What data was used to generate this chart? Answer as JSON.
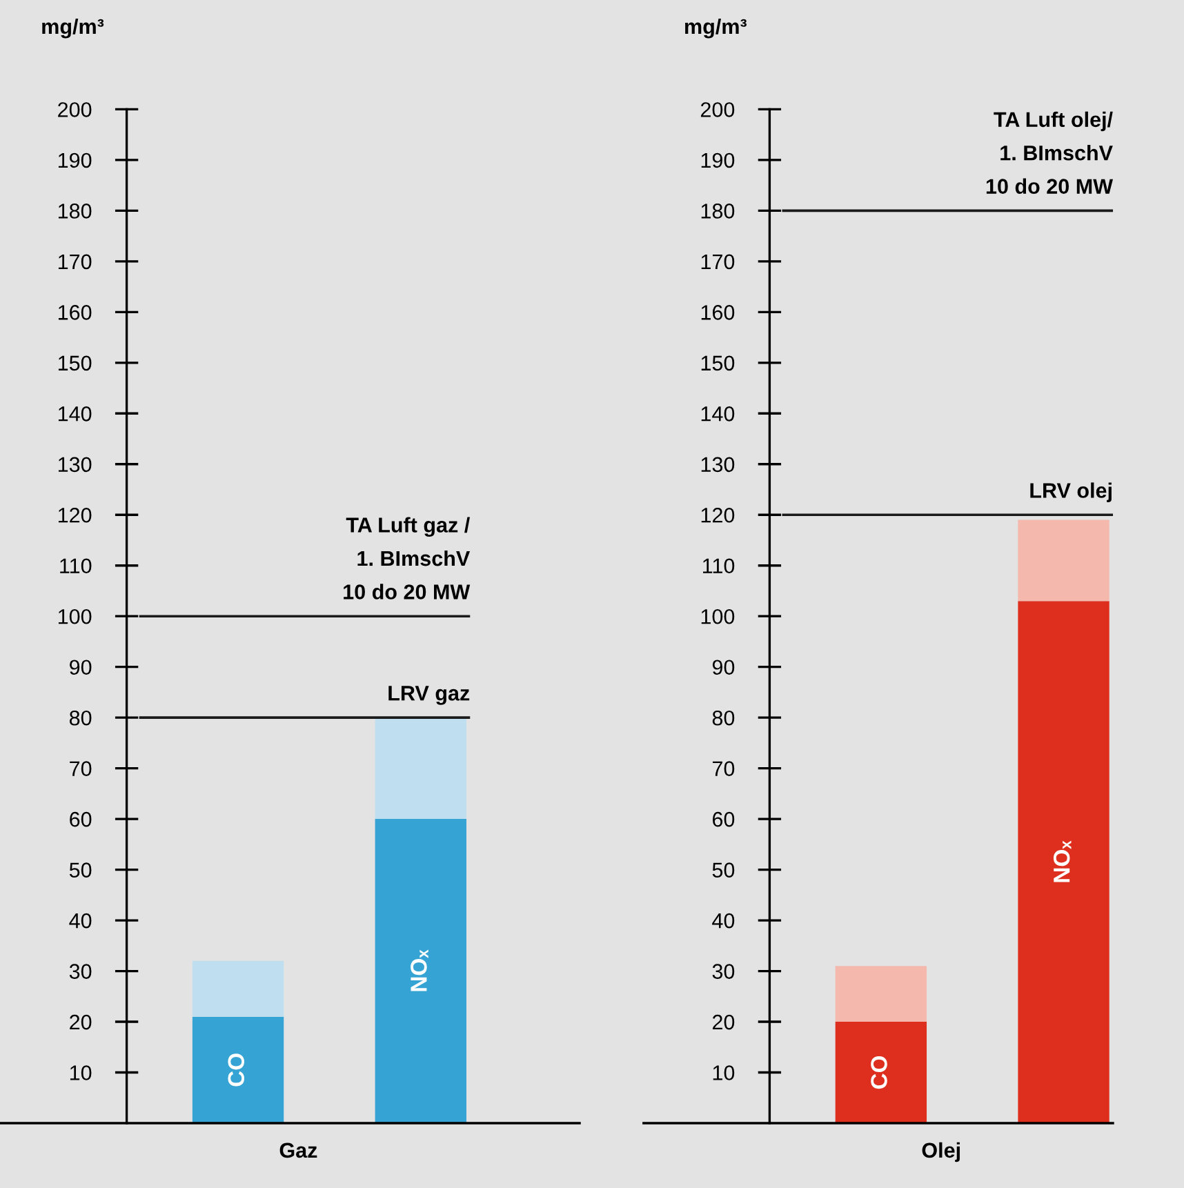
{
  "chart_data": [
    {
      "type": "bar",
      "stacked": true,
      "xlabel": "Gaz",
      "ylabel": "mg/m³",
      "categories": [
        "CO",
        "NOₓ"
      ],
      "series": [
        {
          "color": "#35a3d3",
          "values": [
            21,
            60
          ]
        },
        {
          "color": "#bfdff0",
          "values": [
            11,
            20
          ]
        }
      ],
      "ylim": [
        0,
        200
      ],
      "yticks": [
        10,
        20,
        30,
        40,
        50,
        60,
        70,
        80,
        90,
        100,
        110,
        120,
        130,
        140,
        150,
        160,
        170,
        180,
        190,
        200
      ],
      "ref_lines": [
        {
          "axis": "y",
          "value": 100,
          "label": "TA Luft gaz /\n1. BImschV\n10 do 20 MW",
          "color": "#1a1a1a"
        },
        {
          "axis": "y",
          "value": 80,
          "label": "LRV gaz",
          "color": "#1a1a1a"
        }
      ],
      "grid": false,
      "tick_labels": "y"
    },
    {
      "type": "bar",
      "stacked": true,
      "xlabel": "Olej",
      "ylabel": "mg/m³",
      "categories": [
        "CO",
        "NOₓ"
      ],
      "series": [
        {
          "color": "#dd2e1e",
          "values": [
            20,
            103
          ]
        },
        {
          "color": "#f4b8ad",
          "values": [
            11,
            16
          ]
        }
      ],
      "ylim": [
        0,
        200
      ],
      "yticks": [
        10,
        20,
        30,
        40,
        50,
        60,
        70,
        80,
        90,
        100,
        110,
        120,
        130,
        140,
        150,
        160,
        170,
        180,
        190,
        200
      ],
      "ref_lines": [
        {
          "axis": "y",
          "value": 180,
          "label": "TA Luft olej/\n1. BImschV\n10 do 20 MW",
          "color": "#1a1a1a"
        },
        {
          "axis": "y",
          "value": 120,
          "label": "LRV olej",
          "color": "#1a1a1a"
        }
      ],
      "grid": false,
      "tick_labels": "y"
    }
  ]
}
